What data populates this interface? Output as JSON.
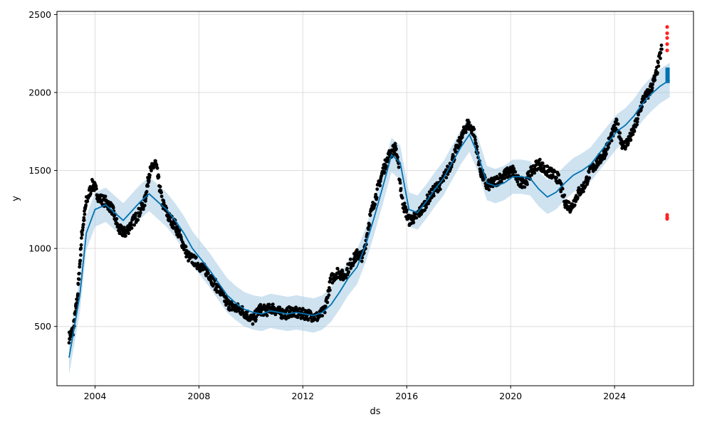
{
  "chart_data": {
    "type": "line",
    "title": "",
    "xlabel": "ds",
    "ylabel": "y",
    "x_ticks": [
      "2004",
      "2008",
      "2012",
      "2016",
      "2020",
      "2024"
    ],
    "y_ticks": [
      "500",
      "1000",
      "1500",
      "2000",
      "2500"
    ],
    "xlim": [
      "2002-07-15",
      "2027-01-15"
    ],
    "ylim": [
      120,
      2520
    ],
    "grid": true,
    "legend": "none",
    "colors": {
      "observed": "#000000",
      "forecast": "#0072b2",
      "interval": "#a6cbe3",
      "anomaly": "#ff2222"
    },
    "forecast_band_halfwidth": 110,
    "forecast": {
      "x": [
        "2003-01-01",
        "2003-06-01",
        "2003-09-01",
        "2004-01-01",
        "2004-06-01",
        "2004-10-01",
        "2005-02-01",
        "2005-06-01",
        "2005-10-01",
        "2006-02-01",
        "2006-06-01",
        "2006-10-01",
        "2007-02-01",
        "2007-06-01",
        "2007-10-01",
        "2008-02-01",
        "2008-06-01",
        "2008-10-01",
        "2009-02-01",
        "2009-06-01",
        "2009-10-01",
        "2010-02-01",
        "2010-06-01",
        "2010-10-01",
        "2011-02-01",
        "2011-06-01",
        "2011-10-01",
        "2012-02-01",
        "2012-06-01",
        "2012-10-01",
        "2013-02-01",
        "2013-06-01",
        "2013-10-01",
        "2014-02-01",
        "2014-06-01",
        "2014-10-01",
        "2015-02-01",
        "2015-06-01",
        "2015-10-01",
        "2016-02-01",
        "2016-06-01",
        "2016-10-01",
        "2017-02-01",
        "2017-06-01",
        "2017-10-01",
        "2018-02-01",
        "2018-06-01",
        "2018-10-01",
        "2019-02-01",
        "2019-06-01",
        "2019-10-01",
        "2020-02-01",
        "2020-06-01",
        "2020-10-01",
        "2021-02-01",
        "2021-06-01",
        "2021-10-01",
        "2022-02-01",
        "2022-06-01",
        "2022-10-01",
        "2023-02-01",
        "2023-06-01",
        "2023-10-01",
        "2024-02-01",
        "2024-06-01",
        "2024-10-01",
        "2025-02-01",
        "2025-06-01",
        "2025-10-01",
        "2026-02-15"
      ],
      "values": [
        300,
        700,
        1100,
        1250,
        1280,
        1230,
        1180,
        1240,
        1300,
        1350,
        1300,
        1250,
        1180,
        1100,
        1000,
        930,
        860,
        780,
        700,
        650,
        610,
        590,
        580,
        600,
        590,
        580,
        590,
        580,
        570,
        590,
        640,
        720,
        810,
        880,
        1020,
        1200,
        1400,
        1600,
        1550,
        1250,
        1230,
        1300,
        1380,
        1450,
        1550,
        1650,
        1730,
        1600,
        1420,
        1400,
        1420,
        1460,
        1460,
        1450,
        1380,
        1330,
        1360,
        1420,
        1470,
        1500,
        1540,
        1610,
        1680,
        1750,
        1790,
        1850,
        1930,
        1990,
        2040,
        2080
      ]
    },
    "observed": {
      "x": [
        "2003-01-01",
        "2003-03-01",
        "2003-05-01",
        "2003-07-01",
        "2003-09-01",
        "2003-12-01",
        "2004-03-01",
        "2004-06-01",
        "2004-09-01",
        "2004-12-01",
        "2005-03-01",
        "2005-06-01",
        "2005-09-01",
        "2005-12-01",
        "2006-02-01",
        "2006-05-01",
        "2006-08-01",
        "2006-11-01",
        "2007-02-01",
        "2007-05-01",
        "2007-08-01",
        "2007-11-01",
        "2008-02-01",
        "2008-05-01",
        "2008-08-01",
        "2008-11-01",
        "2009-02-01",
        "2009-05-01",
        "2009-08-01",
        "2009-11-01",
        "2010-02-01",
        "2010-05-01",
        "2010-08-01",
        "2010-11-01",
        "2011-02-01",
        "2011-05-01",
        "2011-08-01",
        "2011-11-01",
        "2012-02-01",
        "2012-05-01",
        "2012-08-01",
        "2012-11-01",
        "2013-02-01",
        "2013-05-01",
        "2013-08-01",
        "2013-11-01",
        "2014-02-01",
        "2014-05-01",
        "2014-08-01",
        "2014-11-01",
        "2015-02-01",
        "2015-05-01",
        "2015-08-01",
        "2015-11-01",
        "2016-02-01",
        "2016-05-01",
        "2016-08-01",
        "2016-11-01",
        "2017-02-01",
        "2017-05-01",
        "2017-08-01",
        "2017-11-01",
        "2018-02-01",
        "2018-05-01",
        "2018-08-01",
        "2018-11-01",
        "2019-02-01",
        "2019-05-01",
        "2019-08-01",
        "2019-11-01",
        "2020-02-01",
        "2020-05-01",
        "2020-08-01",
        "2020-11-01",
        "2021-02-01",
        "2021-05-01",
        "2021-08-01",
        "2021-11-01",
        "2022-02-01",
        "2022-05-01",
        "2022-08-01",
        "2022-11-01",
        "2023-02-01",
        "2023-05-01",
        "2023-08-01",
        "2023-11-01",
        "2024-02-01",
        "2024-05-01",
        "2024-08-01",
        "2024-11-01",
        "2025-02-01",
        "2025-05-01",
        "2025-08-01",
        "2025-11-01"
      ],
      "values": [
        430,
        480,
        700,
        1100,
        1300,
        1420,
        1320,
        1300,
        1250,
        1120,
        1100,
        1160,
        1220,
        1300,
        1480,
        1550,
        1300,
        1200,
        1150,
        1050,
        950,
        920,
        880,
        850,
        780,
        720,
        650,
        620,
        610,
        580,
        540,
        610,
        600,
        620,
        590,
        580,
        600,
        580,
        580,
        570,
        560,
        600,
        800,
        850,
        820,
        900,
        960,
        950,
        1200,
        1350,
        1500,
        1600,
        1650,
        1300,
        1180,
        1200,
        1250,
        1320,
        1380,
        1420,
        1500,
        1600,
        1700,
        1800,
        1750,
        1500,
        1400,
        1420,
        1450,
        1480,
        1500,
        1420,
        1430,
        1500,
        1550,
        1500,
        1480,
        1450,
        1300,
        1260,
        1350,
        1400,
        1500,
        1550,
        1600,
        1700,
        1800,
        1650,
        1700,
        1800,
        1950,
        2000,
        2100,
        2300
      ]
    },
    "anomalies": {
      "x": [
        "2026-01-10",
        "2026-01-10",
        "2026-01-10",
        "2026-01-10",
        "2026-01-10",
        "2026-01-10",
        "2026-01-10",
        "2026-01-10"
      ],
      "values": [
        2420,
        2380,
        2350,
        2310,
        2270,
        1215,
        1200,
        1190
      ]
    }
  }
}
